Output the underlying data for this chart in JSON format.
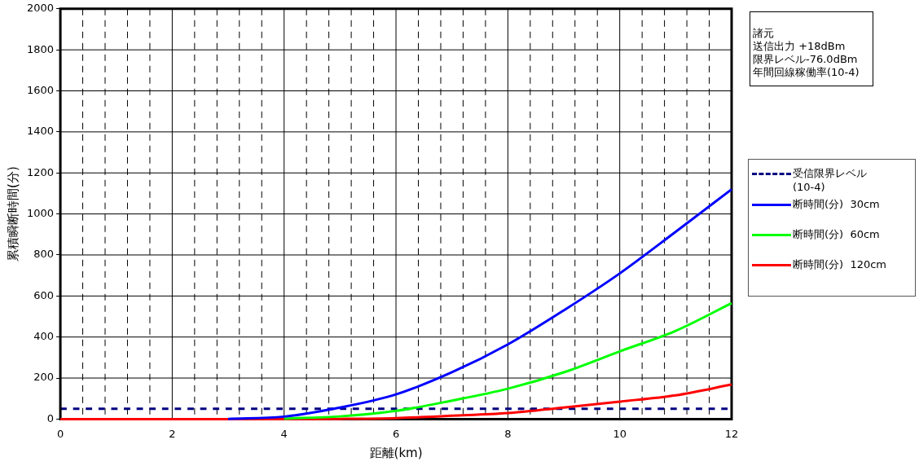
{
  "chart_data": {
    "type": "line",
    "xlabel": "距離(km)",
    "ylabel": "累積瞬断時間(分)",
    "x": [
      0,
      1,
      2,
      3,
      4,
      5,
      6,
      7,
      8,
      9,
      10,
      11,
      12
    ],
    "series": [
      {
        "name": "断時間(分)  30cm",
        "color": "#0000ff",
        "values": [
          null,
          null,
          null,
          1,
          12,
          56,
          120,
          228,
          364,
          530,
          710,
          913,
          1120
        ]
      },
      {
        "name": "断時間(分)  60cm",
        "color": "#00ff00",
        "values": [
          null,
          null,
          null,
          null,
          2,
          13,
          40,
          90,
          148,
          228,
          330,
          430,
          565
        ]
      },
      {
        "name": "断時間(分)  120cm",
        "color": "#ff0000",
        "values": [
          0,
          0,
          0,
          0,
          0,
          1,
          5,
          16,
          29,
          56,
          85,
          116,
          168
        ]
      }
    ],
    "ref_lines": [
      {
        "axis": "y",
        "value": 50,
        "label": "受信限界レベル\n(10-4)",
        "color": "#000080",
        "line_style": "dashed"
      }
    ],
    "annotations": [
      "諸元",
      "送信出力  +18dBm",
      "限界レベル-76.0dBm",
      "年間回線稼働率(10-4)"
    ],
    "xlim": [
      0,
      12
    ],
    "xticks": [
      0,
      {
        "value": 0.4,
        "label": null
      },
      {
        "value": 0.8,
        "label": null
      },
      {
        "value": 1.2,
        "label": null
      },
      {
        "value": 1.6,
        "label": null
      },
      2,
      {
        "value": 2.4,
        "label": null
      },
      {
        "value": 2.8,
        "label": null
      },
      {
        "value": 3.2,
        "label": null
      },
      {
        "value": 3.6,
        "label": null
      },
      4,
      {
        "value": 4.4,
        "label": null
      },
      {
        "value": 4.8,
        "label": null
      },
      {
        "value": 5.2,
        "label": null
      },
      {
        "value": 5.6,
        "label": null
      },
      6,
      {
        "value": 6.4,
        "label": null
      },
      {
        "value": 6.8,
        "label": null
      },
      {
        "value": 7.2,
        "label": null
      },
      {
        "value": 7.6,
        "label": null
      },
      8,
      {
        "value": 8.4,
        "label": null
      },
      {
        "value": 8.8,
        "label": null
      },
      {
        "value": 9.2,
        "label": null
      },
      {
        "value": 9.6,
        "label": null
      },
      10,
      {
        "value": 10.4,
        "label": null
      },
      {
        "value": 10.8,
        "label": null
      },
      {
        "value": 11.2,
        "label": null
      },
      {
        "value": 11.6,
        "label": null
      },
      12
    ],
    "ylim": [
      0,
      2000
    ],
    "yticks": [
      0,
      200,
      400,
      600,
      800,
      1000,
      1200,
      1400,
      1600,
      1800,
      2000
    ],
    "grid": true,
    "legend": "right",
    "marker": "none",
    "line_style": "solid"
  }
}
